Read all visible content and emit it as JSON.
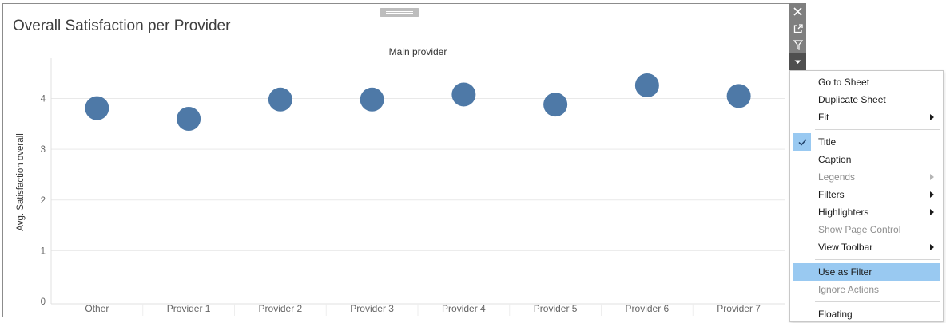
{
  "worksheet": {
    "title": "Overall Satisfaction per Provider",
    "column_header": "Main provider",
    "y_axis_label": "Avg. Satisfaction overall"
  },
  "chart_data": {
    "type": "scatter",
    "title": "Overall Satisfaction per Provider",
    "xlabel": "Main provider",
    "ylabel": "Avg. Satisfaction overall",
    "categories": [
      "Other",
      "Provider 1",
      "Provider 2",
      "Provider 3",
      "Provider 4",
      "Provider 5",
      "Provider 6",
      "Provider 7"
    ],
    "values": [
      3.81,
      3.6,
      3.98,
      3.98,
      4.08,
      3.88,
      4.26,
      4.05
    ],
    "y_ticks": [
      "0",
      "1",
      "2",
      "3",
      "4"
    ],
    "ylim": [
      0,
      4.7
    ],
    "grid": true,
    "marker_color": "#4e79a7"
  },
  "toolbar": {
    "icons": [
      "close-icon",
      "popout-icon",
      "filter-icon",
      "dropdown-icon"
    ]
  },
  "menu": {
    "items": [
      {
        "label": "Go to Sheet",
        "disabled": false,
        "submenu": false
      },
      {
        "label": "Duplicate Sheet",
        "disabled": false,
        "submenu": false
      },
      {
        "label": "Fit",
        "disabled": false,
        "submenu": true
      },
      {
        "label": "Title",
        "disabled": false,
        "submenu": false,
        "checked": true
      },
      {
        "label": "Caption",
        "disabled": false,
        "submenu": false
      },
      {
        "label": "Legends",
        "disabled": true,
        "submenu": true
      },
      {
        "label": "Filters",
        "disabled": false,
        "submenu": true
      },
      {
        "label": "Highlighters",
        "disabled": false,
        "submenu": true
      },
      {
        "label": "Show Page Control",
        "disabled": true,
        "submenu": false
      },
      {
        "label": "View Toolbar",
        "disabled": false,
        "submenu": true
      },
      {
        "label": "Use as Filter",
        "disabled": false,
        "submenu": false,
        "highlighted": true
      },
      {
        "label": "Ignore Actions",
        "disabled": true,
        "submenu": false
      },
      {
        "label": "Floating",
        "disabled": false,
        "submenu": false
      }
    ]
  }
}
